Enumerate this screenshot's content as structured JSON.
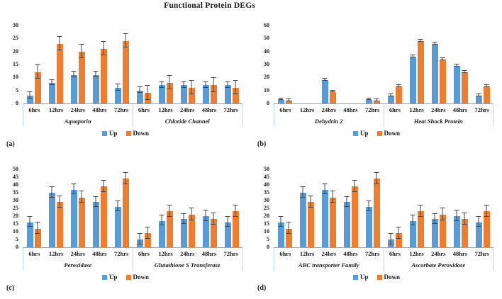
{
  "title": "Functional Protein DEGs",
  "colors": {
    "up": "#5B9BD5",
    "down": "#ED7D31",
    "error": "#464646",
    "axis": "#9aa0a6",
    "separator": "#bdd3ea"
  },
  "legend": {
    "up_label": "Up",
    "down_label": "Down"
  },
  "chart_data": [
    {
      "type": "bar",
      "panel_label": "(a)",
      "ymax": 30,
      "ticks": [
        0,
        5,
        10,
        15,
        20,
        25,
        30
      ],
      "categories": [
        "6hrs",
        "12hrs",
        "24hrs",
        "48hrs",
        "72hrs"
      ],
      "legend": [
        "Up",
        "Down"
      ],
      "groups": [
        {
          "label": "Aquaporin",
          "series": [
            {
              "name": "Up",
              "values": [
                3,
                8,
                11,
                11,
                6
              ],
              "errors": [
                1,
                0.8,
                1,
                1,
                1
              ]
            },
            {
              "name": "Down",
              "values": [
                12,
                23,
                20,
                21,
                24
              ],
              "errors": [
                2.5,
                2.5,
                2.5,
                2.5,
                2.5
              ]
            }
          ]
        },
        {
          "label": "Chloride Channel",
          "series": [
            {
              "name": "Up",
              "values": [
                5,
                7,
                7,
                7,
                7
              ],
              "errors": [
                1,
                1,
                1,
                1,
                1
              ]
            },
            {
              "name": "Down",
              "values": [
                4,
                8,
                6,
                7,
                6
              ],
              "errors": [
                2.5,
                2.5,
                2.5,
                2.5,
                2.5
              ]
            }
          ]
        }
      ]
    },
    {
      "type": "bar",
      "panel_label": "(b)",
      "ymax": 60,
      "ticks": [
        0,
        10,
        20,
        30,
        40,
        50,
        60
      ],
      "categories": [
        "6hrs",
        "12hrs",
        "24hrs",
        "48hrs",
        "72hrs"
      ],
      "legend": [
        "Up",
        "Down"
      ],
      "groups": [
        {
          "label": "Dehydrin 2",
          "series": [
            {
              "name": "Up",
              "values": [
                3,
                0,
                18,
                0,
                3
              ],
              "errors": [
                0.5,
                0,
                0.5,
                0,
                0.5
              ]
            },
            {
              "name": "Down",
              "values": [
                2,
                0,
                9,
                0,
                2
              ],
              "errors": [
                0.5,
                0,
                0.5,
                0,
                0.5
              ]
            }
          ]
        },
        {
          "label": "Heat Shock Protein",
          "series": [
            {
              "name": "Up",
              "values": [
                6,
                36,
                46,
                29,
                6
              ],
              "errors": [
                0.5,
                0.5,
                0.5,
                0.5,
                0.5
              ]
            },
            {
              "name": "Down",
              "values": [
                13,
                48,
                34,
                24,
                13
              ],
              "errors": [
                0.5,
                0.5,
                0.5,
                0.5,
                0.5
              ]
            }
          ]
        }
      ]
    },
    {
      "type": "bar",
      "panel_label": "(c)",
      "ymax": 50,
      "ticks": [
        0,
        5,
        10,
        15,
        20,
        25,
        30,
        35,
        40,
        45,
        50
      ],
      "categories": [
        "6hrs",
        "12hrs",
        "24hrs",
        "48hrs",
        "72hrs"
      ],
      "legend": [
        "Up",
        "Down"
      ],
      "groups": [
        {
          "label": "Peroxidase",
          "series": [
            {
              "name": "Up",
              "values": [
                16,
                35,
                37,
                29,
                26
              ],
              "errors": [
                3,
                3,
                3,
                3,
                3
              ]
            },
            {
              "name": "Down",
              "values": [
                12,
                29,
                32,
                39,
                44
              ],
              "errors": [
                3.5,
                3.5,
                3.5,
                3.5,
                3.5
              ]
            }
          ]
        },
        {
          "label": "Glutathione S Transferase",
          "series": [
            {
              "name": "Up",
              "values": [
                5,
                17,
                18,
                20,
                16
              ],
              "errors": [
                3,
                3,
                3,
                3,
                3
              ]
            },
            {
              "name": "Down",
              "values": [
                9,
                23,
                21,
                18,
                23
              ],
              "errors": [
                3.5,
                3.5,
                3.5,
                3.5,
                3.5
              ]
            }
          ]
        }
      ]
    },
    {
      "type": "bar",
      "panel_label": "(d)",
      "ymax": 50,
      "ticks": [
        0,
        5,
        10,
        15,
        20,
        25,
        30,
        35,
        40,
        45,
        50
      ],
      "categories": [
        "6hrs",
        "12hrs",
        "24hrs",
        "48hrs",
        "72hrs"
      ],
      "legend": [
        "Up",
        "Down"
      ],
      "groups": [
        {
          "label": "ABC transporter Family",
          "series": [
            {
              "name": "Up",
              "values": [
                16,
                35,
                37,
                29,
                26
              ],
              "errors": [
                3,
                3,
                3,
                3,
                3
              ]
            },
            {
              "name": "Down",
              "values": [
                12,
                29,
                32,
                39,
                44
              ],
              "errors": [
                3.5,
                3.5,
                3.5,
                3.5,
                3.5
              ]
            }
          ]
        },
        {
          "label": "Ascorbate Peroxidase",
          "series": [
            {
              "name": "Up",
              "values": [
                5,
                17,
                18,
                20,
                16
              ],
              "errors": [
                3,
                3,
                3,
                3,
                3
              ]
            },
            {
              "name": "Down",
              "values": [
                9,
                23,
                21,
                18,
                23
              ],
              "errors": [
                3.5,
                3.5,
                3.5,
                3.5,
                3.5
              ]
            }
          ]
        }
      ]
    }
  ]
}
